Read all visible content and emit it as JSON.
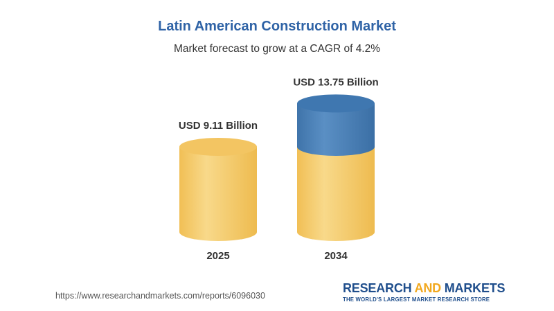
{
  "header": {
    "title": "Latin American Construction Market",
    "subtitle": "Market forecast to grow at a CAGR of 4.2%"
  },
  "chart_data": {
    "type": "bar",
    "title": "Latin American Construction Market",
    "subtitle": "Market forecast to grow at a CAGR of 4.2%",
    "categories": [
      "2025",
      "2034"
    ],
    "values": [
      9.11,
      13.75
    ],
    "value_labels": [
      "USD 9.11 Billion",
      "USD 13.75 Billion"
    ],
    "unit": "USD Billion",
    "xlabel": "",
    "ylabel": "",
    "grid": false,
    "legend": "none",
    "colors": {
      "base": "#f5c96a",
      "growth": "#4a80b6"
    }
  },
  "footer": {
    "url": "https://www.researchandmarkets.com/reports/6096030",
    "brand_part1": "RESEARCH ",
    "brand_part2": "AND",
    "brand_part3": " MARKETS",
    "tagline": "THE WORLD'S LARGEST MARKET RESEARCH STORE"
  }
}
